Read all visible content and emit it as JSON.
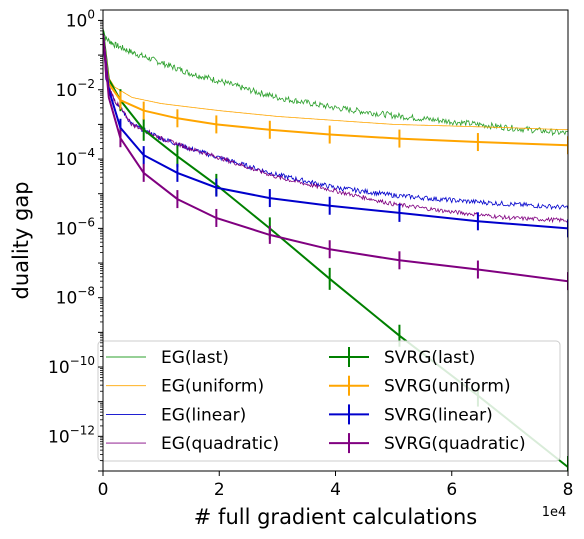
{
  "chart_data": {
    "type": "line",
    "xlabel": "# full gradient calculations",
    "ylabel": "duality gap",
    "x_scale_label": "1e4",
    "y_scale": "log",
    "xlim": [
      0,
      80000
    ],
    "ylim": [
      1e-13,
      2
    ],
    "grid": false,
    "legend_placement": "lower-left",
    "legend_columns": 2,
    "x_ticks": [
      {
        "value": 0,
        "label": "0"
      },
      {
        "value": 20000,
        "label": "2"
      },
      {
        "value": 40000,
        "label": "4"
      },
      {
        "value": 60000,
        "label": "6"
      },
      {
        "value": 80000,
        "label": "8"
      }
    ],
    "y_ticks": [
      {
        "value": 1,
        "base": "10",
        "exp": "0"
      },
      {
        "value": 0.01,
        "base": "10",
        "exp": "−2"
      },
      {
        "value": 0.0001,
        "base": "10",
        "exp": "−4"
      },
      {
        "value": 1e-06,
        "base": "10",
        "exp": "−6"
      },
      {
        "value": 1e-08,
        "base": "10",
        "exp": "−8"
      },
      {
        "value": 1e-10,
        "base": "10",
        "exp": "−10"
      },
      {
        "value": 1e-12,
        "base": "10",
        "exp": "−12"
      }
    ],
    "series": [
      {
        "name": "EG(last)",
        "style": "thin-noisy",
        "color": "#2ca02c",
        "x": [
          0,
          500,
          2000,
          5000,
          10000,
          15000,
          20000,
          25000,
          30000,
          40000,
          50000,
          60000,
          70000,
          80000
        ],
        "y": [
          0.6,
          0.3,
          0.2,
          0.12,
          0.06,
          0.03,
          0.018,
          0.01,
          0.006,
          0.003,
          0.0018,
          0.0012,
          0.0008,
          0.00055
        ]
      },
      {
        "name": "EG(uniform)",
        "style": "thin",
        "color": "#ffa500",
        "x": [
          0,
          500,
          2000,
          5000,
          10000,
          20000,
          30000,
          40000,
          50000,
          60000,
          70000,
          80000
        ],
        "y": [
          0.3,
          0.03,
          0.012,
          0.006,
          0.004,
          0.0025,
          0.0017,
          0.0013,
          0.001,
          0.0009,
          0.0008,
          0.0007
        ]
      },
      {
        "name": "EG(linear)",
        "style": "thin-noisy",
        "color": "#0000cc",
        "x": [
          0,
          500,
          2000,
          5000,
          10000,
          15000,
          20000,
          30000,
          40000,
          50000,
          60000,
          70000,
          80000
        ],
        "y": [
          0.3,
          0.02,
          0.005,
          0.001,
          0.0004,
          0.0002,
          0.00011,
          3.5e-05,
          1.5e-05,
          9e-06,
          6.5e-06,
          5e-06,
          4e-06
        ]
      },
      {
        "name": "EG(quadratic)",
        "style": "thin-noisy",
        "color": "#800080",
        "x": [
          0,
          500,
          2000,
          5000,
          10000,
          15000,
          20000,
          30000,
          40000,
          50000,
          60000,
          70000,
          80000
        ],
        "y": [
          0.3,
          0.02,
          0.005,
          0.001,
          0.0004,
          0.0002,
          0.00011,
          3e-05,
          1.2e-05,
          5e-06,
          3e-06,
          2e-06,
          1.7e-06
        ]
      },
      {
        "name": "SVRG(last)",
        "style": "thick-errorbars",
        "color": "#008000",
        "x": [
          0,
          1000,
          3000,
          7000,
          12800,
          19500,
          28700,
          39000,
          51000,
          64500,
          80000
        ],
        "y": [
          0.5,
          0.02,
          0.005,
          0.0007,
          0.00012,
          1.8e-05,
          1e-06,
          3.5e-08,
          8e-10,
          1.5e-11,
          1.3e-13
        ]
      },
      {
        "name": "SVRG(uniform)",
        "style": "thick-errorbars",
        "color": "#ffa500",
        "x": [
          0,
          1000,
          3000,
          7000,
          12800,
          19500,
          28700,
          39000,
          51000,
          64500,
          80000
        ],
        "y": [
          0.4,
          0.015,
          0.005,
          0.0025,
          0.0015,
          0.001,
          0.0007,
          0.00051,
          0.00039,
          0.00031,
          0.00025
        ]
      },
      {
        "name": "SVRG(linear)",
        "style": "thick-errorbars",
        "color": "#0000cc",
        "x": [
          0,
          1000,
          3000,
          7000,
          12800,
          19500,
          28700,
          39000,
          51000,
          64500,
          80000
        ],
        "y": [
          0.4,
          0.01,
          0.0008,
          0.00013,
          4e-05,
          1.5e-05,
          7.5e-06,
          4.5e-06,
          2.8e-06,
          1.6e-06,
          1e-06
        ]
      },
      {
        "name": "SVRG(quadratic)",
        "style": "thick-errorbars",
        "color": "#800080",
        "x": [
          0,
          1000,
          3000,
          7000,
          12800,
          19500,
          28700,
          39000,
          51000,
          64500,
          80000
        ],
        "y": [
          0.4,
          0.006,
          0.0004,
          4e-05,
          7e-06,
          2e-06,
          6.5e-07,
          2.5e-07,
          1.2e-07,
          6.5e-08,
          3e-08
        ]
      }
    ]
  }
}
